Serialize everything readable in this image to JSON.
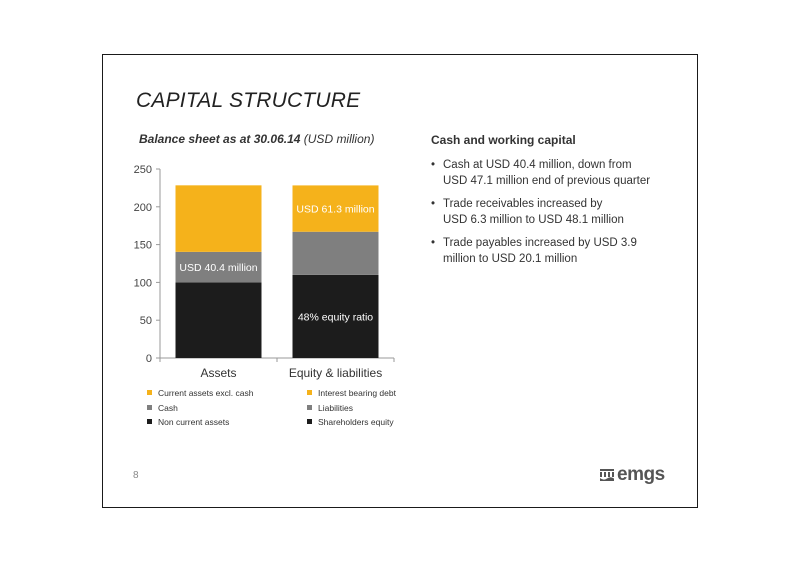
{
  "slide": {
    "title": "CAPITAL STRUCTURE",
    "page_number": "8",
    "logo_text": "emgs",
    "logo_icon": "emgs-logo-icon"
  },
  "chart_section": {
    "subtitle_bold": "Balance sheet as at 30.06.14",
    "subtitle_rest": " (USD million)"
  },
  "right_panel": {
    "heading": "Cash and working capital",
    "bullets": [
      [
        "Cash at USD 40.4 million, down from",
        "USD 47.1 million end of previous quarter"
      ],
      [
        "Trade receivables increased by",
        "USD 6.3 million to USD 48.1 million"
      ],
      [
        "Trade payables increased by USD 3.9",
        "million to USD 20.1 million"
      ]
    ]
  },
  "chart_data": {
    "type": "bar",
    "stacked": true,
    "categories": [
      "Assets",
      "Equity & liabilities"
    ],
    "ylim": [
      0,
      250
    ],
    "yticks": [
      0,
      50,
      100,
      150,
      200,
      250
    ],
    "colors": {
      "yellow": "#f5b21b",
      "gray": "#7f7f7f",
      "black": "#1c1c1c"
    },
    "stacks": [
      {
        "category": "Assets",
        "segments": [
          {
            "name": "Non current assets",
            "value": 100,
            "color": "#1c1c1c"
          },
          {
            "name": "Cash",
            "value": 40.4,
            "color": "#7f7f7f",
            "label": "USD 40.4 million"
          },
          {
            "name": "Current assets excl. cash",
            "value": 88,
            "color": "#f5b21b"
          }
        ]
      },
      {
        "category": "Equity & liabilities",
        "segments": [
          {
            "name": "Shareholders equity",
            "value": 110,
            "color": "#1c1c1c",
            "label": "48% equity ratio"
          },
          {
            "name": "Liabilities",
            "value": 57,
            "color": "#7f7f7f"
          },
          {
            "name": "Interest bearing debt",
            "value": 61.3,
            "color": "#f5b21b",
            "label": "USD 61.3 million"
          }
        ]
      }
    ],
    "legend": [
      [
        "Current assets excl. cash",
        "Interest bearing debt"
      ],
      [
        "Cash",
        "Liabilities"
      ],
      [
        "Non current assets",
        "Shareholders equity"
      ]
    ],
    "legend_colors": [
      [
        "#f5b21b",
        "#f5b21b"
      ],
      [
        "#7f7f7f",
        "#7f7f7f"
      ],
      [
        "#1c1c1c",
        "#1c1c1c"
      ]
    ],
    "legend_position": "bottom"
  }
}
